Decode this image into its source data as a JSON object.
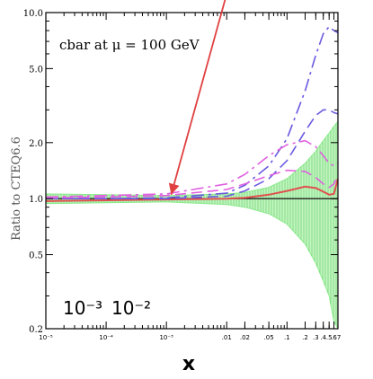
{
  "chart_data": {
    "type": "line",
    "annotation": "cbar at μ = 100 GeV",
    "xlabel": "x",
    "ylabel": "Ratio to CTEQ6.6",
    "ylim": [
      0.2,
      10.0
    ],
    "y_scale": "log",
    "x_scale": "log",
    "y_ticks": [
      "0.2",
      "0.5",
      "1.0",
      "2.0",
      "5.0",
      "10.0"
    ],
    "x_ticks": [
      "10⁻⁵",
      "10⁻⁴",
      "10⁻³",
      ".01",
      ".02",
      ".05",
      ".1",
      ".2",
      ".3",
      ".4",
      ".5",
      ".6",
      ".7"
    ],
    "range_labels": [
      "10⁻³",
      "10⁻²"
    ],
    "x": [
      1e-05,
      0.0001,
      0.001,
      0.01,
      0.02,
      0.05,
      0.1,
      0.2,
      0.3,
      0.4,
      0.5,
      0.6,
      0.7
    ],
    "band_upper": [
      1.06,
      1.05,
      1.04,
      1.06,
      1.08,
      1.15,
      1.28,
      1.55,
      1.8,
      2.05,
      2.25,
      2.45,
      2.6
    ],
    "band_lower": [
      0.94,
      0.95,
      0.96,
      0.93,
      0.9,
      0.83,
      0.73,
      0.57,
      0.45,
      0.36,
      0.3,
      0.22,
      0.2
    ],
    "series": [
      {
        "style": "solid",
        "color": "#e05050",
        "values": [
          0.97,
          0.98,
          0.99,
          1.0,
          1.01,
          1.05,
          1.1,
          1.16,
          1.14,
          1.09,
          1.05,
          1.06,
          1.28
        ]
      },
      {
        "style": "dashdot",
        "color": "#6a5ae0",
        "values": [
          1.0,
          1.0,
          1.01,
          1.07,
          1.18,
          1.5,
          2.1,
          3.8,
          5.9,
          7.7,
          8.4,
          8.0,
          7.8
        ]
      },
      {
        "style": "dashed",
        "color": "#6a5ae0",
        "values": [
          1.0,
          1.0,
          1.0,
          1.03,
          1.1,
          1.28,
          1.6,
          2.3,
          2.8,
          3.0,
          3.0,
          2.9,
          2.85
        ]
      },
      {
        "style": "dashdot",
        "color": "#e060e0",
        "values": [
          1.02,
          1.04,
          1.06,
          1.2,
          1.35,
          1.7,
          1.95,
          2.05,
          1.9,
          1.7,
          1.55,
          1.5,
          1.55
        ]
      },
      {
        "style": "dashed",
        "color": "#e060e0",
        "values": [
          1.01,
          1.02,
          1.04,
          1.12,
          1.2,
          1.33,
          1.42,
          1.4,
          1.3,
          1.2,
          1.15,
          1.2,
          1.35
        ]
      }
    ],
    "reference_line": 1.0,
    "arrow": {
      "color": "#e04040",
      "to_x": 0.0012,
      "to_y": 1.05
    },
    "colors": {
      "band": "#90ee90",
      "frame": "#000000"
    }
  }
}
